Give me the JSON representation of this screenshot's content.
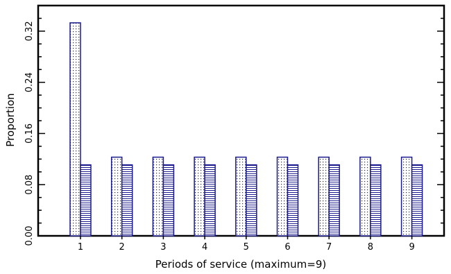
{
  "chart_data": {
    "type": "bar",
    "categories": [
      "1",
      "2",
      "3",
      "4",
      "5",
      "6",
      "7",
      "8",
      "9"
    ],
    "series": [
      {
        "values": [
          0.333,
          0.123,
          0.123,
          0.123,
          0.123,
          0.123,
          0.123,
          0.123,
          0.123
        ]
      },
      {
        "values": [
          0.111,
          0.111,
          0.111,
          0.111,
          0.111,
          0.111,
          0.111,
          0.111,
          0.111
        ]
      }
    ],
    "xlabel": "Periods of service (maximum=9)",
    "ylabel": "Proportion",
    "ylim": [
      0,
      0.36
    ],
    "yticks": [
      "0.00",
      "0.08",
      "0.16",
      "0.24",
      "0.32"
    ],
    "grid": false,
    "colors": {
      "bar_stroke": "#1a1a8c",
      "pattern": "#1a1a8c",
      "axis": "#000000"
    }
  }
}
